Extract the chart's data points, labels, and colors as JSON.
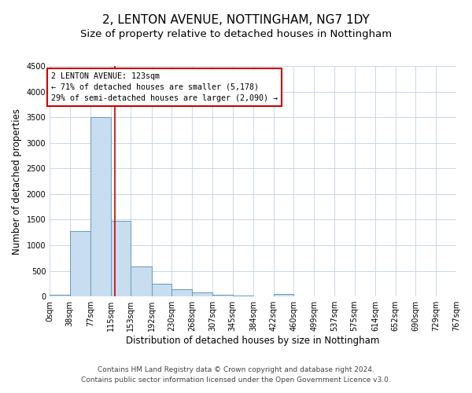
{
  "title": "2, LENTON AVENUE, NOTTINGHAM, NG7 1DY",
  "subtitle": "Size of property relative to detached houses in Nottingham",
  "xlabel": "Distribution of detached houses by size in Nottingham",
  "ylabel": "Number of detached properties",
  "bin_labels": [
    "0sqm",
    "38sqm",
    "77sqm",
    "115sqm",
    "153sqm",
    "192sqm",
    "230sqm",
    "268sqm",
    "307sqm",
    "345sqm",
    "384sqm",
    "422sqm",
    "460sqm",
    "499sqm",
    "537sqm",
    "575sqm",
    "614sqm",
    "652sqm",
    "690sqm",
    "729sqm",
    "767sqm"
  ],
  "bin_edges": [
    0,
    38,
    77,
    115,
    153,
    192,
    230,
    268,
    307,
    345,
    384,
    422,
    460,
    499,
    537,
    575,
    614,
    652,
    690,
    729,
    767
  ],
  "bar_heights": [
    30,
    1270,
    3500,
    1480,
    580,
    250,
    140,
    80,
    30,
    15,
    5,
    40,
    0,
    0,
    0,
    0,
    0,
    0,
    0,
    0
  ],
  "bar_color": "#c8ddef",
  "bar_edge_color": "#6699bb",
  "vline_x": 123,
  "vline_color": "#cc0000",
  "ylim": [
    0,
    4500
  ],
  "yticks": [
    0,
    500,
    1000,
    1500,
    2000,
    2500,
    3000,
    3500,
    4000,
    4500
  ],
  "annotation_title": "2 LENTON AVENUE: 123sqm",
  "annotation_line1": "← 71% of detached houses are smaller (5,178)",
  "annotation_line2": "29% of semi-detached houses are larger (2,090) →",
  "annotation_box_color": "#ffffff",
  "annotation_box_edge": "#cc0000",
  "footer1": "Contains HM Land Registry data © Crown copyright and database right 2024.",
  "footer2": "Contains public sector information licensed under the Open Government Licence v3.0.",
  "bg_color": "#ffffff",
  "grid_color": "#c8d8e8",
  "title_fontsize": 11,
  "subtitle_fontsize": 9.5,
  "axis_label_fontsize": 8.5,
  "tick_fontsize": 7,
  "footer_fontsize": 6.5
}
